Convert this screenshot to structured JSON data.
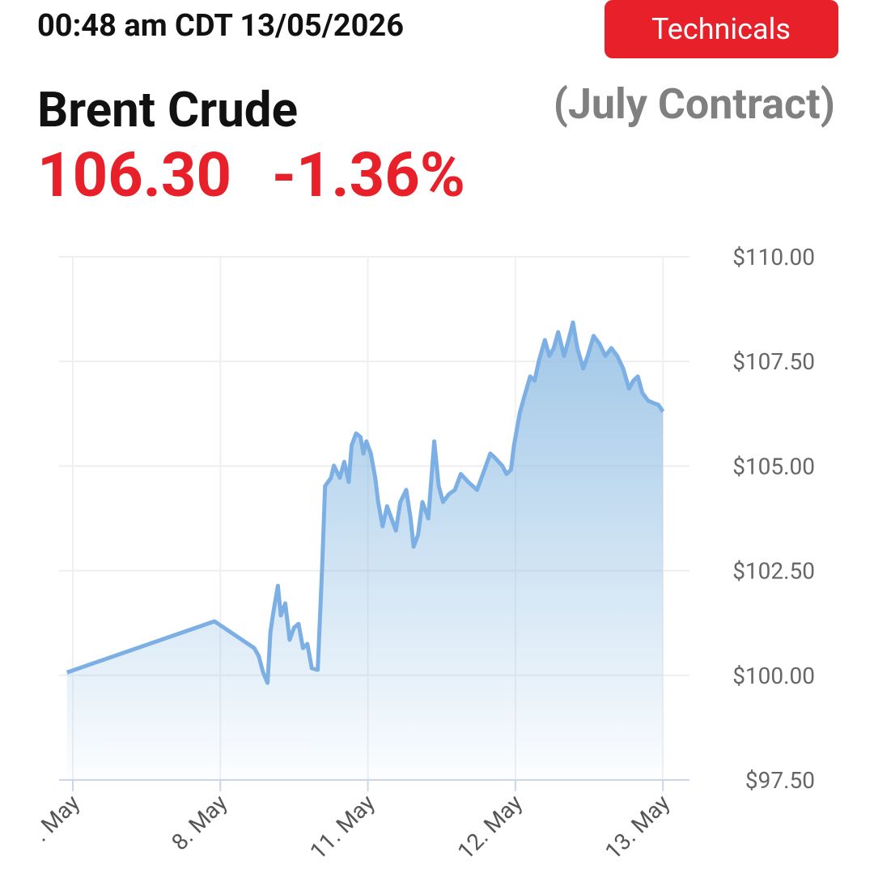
{
  "header": {
    "timestamp": "00:48 am CDT 13/05/2026",
    "button": "Technicals"
  },
  "chart_data": {
    "type": "line",
    "title": "Brent Crude",
    "subtitle": "(July Contract)",
    "last_price": "106.30",
    "change": "-1.36%",
    "x": [
      -0.04,
      0.96,
      1.23,
      1.26,
      1.29,
      1.32,
      1.34,
      1.36,
      1.39,
      1.41,
      1.44,
      1.47,
      1.5,
      1.53,
      1.56,
      1.59,
      1.62,
      1.66,
      1.69,
      1.71,
      1.75,
      1.77,
      1.81,
      1.84,
      1.87,
      1.89,
      1.92,
      1.95,
      1.97,
      1.99,
      2.02,
      2.05,
      2.07,
      2.1,
      2.13,
      2.16,
      2.19,
      2.22,
      2.26,
      2.29,
      2.31,
      2.34,
      2.37,
      2.41,
      2.45,
      2.48,
      2.51,
      2.55,
      2.59,
      2.63,
      2.68,
      2.74,
      2.79,
      2.83,
      2.86,
      2.91,
      2.94,
      2.97,
      2.99,
      3.03,
      3.06,
      3.1,
      3.13,
      3.16,
      3.2,
      3.23,
      3.26,
      3.29,
      3.33,
      3.36,
      3.39,
      3.42,
      3.46,
      3.49,
      3.53,
      3.57,
      3.61,
      3.65,
      3.69,
      3.73,
      3.77,
      3.8,
      3.83,
      3.86,
      3.9,
      3.94,
      3.97,
      4.0
    ],
    "series": [
      {
        "name": "Brent Crude",
        "color": "#7cb0e4",
        "values": [
          100.07,
          101.29,
          100.65,
          100.46,
          100.07,
          99.82,
          101.04,
          101.52,
          102.14,
          101.43,
          101.72,
          100.85,
          101.14,
          101.23,
          100.65,
          100.75,
          100.17,
          100.13,
          102.59,
          104.52,
          104.72,
          105.01,
          104.72,
          105.1,
          104.62,
          105.49,
          105.78,
          105.69,
          105.3,
          105.59,
          105.3,
          104.72,
          104.14,
          103.56,
          104.04,
          103.75,
          103.46,
          104.14,
          104.43,
          103.75,
          103.07,
          103.36,
          104.14,
          103.75,
          105.59,
          104.52,
          104.14,
          104.33,
          104.43,
          104.81,
          104.62,
          104.43,
          104.91,
          105.3,
          105.2,
          105.01,
          104.81,
          104.91,
          105.49,
          106.27,
          106.65,
          107.14,
          107.04,
          107.52,
          108.01,
          107.63,
          107.82,
          108.2,
          107.63,
          108.01,
          108.43,
          107.82,
          107.33,
          107.63,
          108.11,
          107.92,
          107.63,
          107.82,
          107.63,
          107.33,
          106.85,
          107.04,
          107.14,
          106.75,
          106.56,
          106.5,
          106.46,
          106.3
        ]
      }
    ],
    "xlim": [
      -0.093,
      4.18
    ],
    "xticks": [
      {
        "value": 0,
        "label": ". May"
      },
      {
        "value": 1,
        "label": "8. May"
      },
      {
        "value": 2,
        "label": "11. May"
      },
      {
        "value": 3,
        "label": "12. May"
      },
      {
        "value": 4,
        "label": "13. May"
      }
    ],
    "ylim": [
      97.5,
      110
    ],
    "yticks": [
      {
        "value": 97.5,
        "label": "$97.50"
      },
      {
        "value": 100,
        "label": "$100.00"
      },
      {
        "value": 102.5,
        "label": "$102.50"
      },
      {
        "value": 105,
        "label": "$105.00"
      },
      {
        "value": 107.5,
        "label": "$107.50"
      },
      {
        "value": 110,
        "label": "$110.00"
      }
    ],
    "grid": true
  }
}
